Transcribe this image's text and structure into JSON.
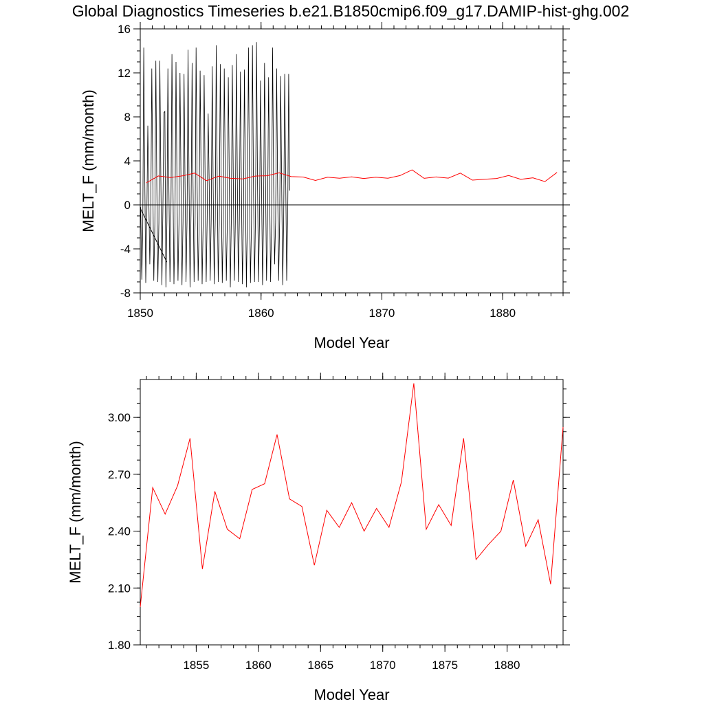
{
  "title": "Global Diagnostics Timeseries b.e21.B1850cmip6.f09_g17.DAMIP-hist-ghg.002",
  "colors": {
    "monthly": "#000000",
    "annual": "#ff0000",
    "zero_line": "#000000"
  },
  "chart_data": [
    {
      "type": "line",
      "xlabel": "Model Year",
      "ylabel": "MELT_F (mm/month)",
      "xlim": [
        1850,
        1885
      ],
      "ylim": [
        -8,
        16
      ],
      "xticks": [
        "1850",
        "1860",
        "1870",
        "1880"
      ],
      "yticks": [
        "-8",
        "-4",
        "0",
        "4",
        "8",
        "12",
        "16"
      ],
      "series": [
        {
          "kind": "monthly",
          "x_start": 1850.04,
          "x_step": 0.08333,
          "values": [
            -0.2,
            -6.8,
            -2.6,
            14.3,
            2.4,
            -7.1,
            -1.4,
            7.2,
            0.8,
            -5.4,
            -1.0,
            12.4,
            1.9,
            -6.9,
            -1.8,
            13.1,
            1.6,
            -7.0,
            -1.6,
            13.1,
            2.2,
            -7.3,
            -0.6,
            8.4,
            8.5,
            -7.5,
            -1.5,
            12.4,
            1.2,
            -7.0,
            -1.0,
            13.7,
            1.7,
            -7.2,
            -1.5,
            13.0,
            1.7,
            -6.9,
            -1.7,
            12.0,
            1.8,
            -7.3,
            -1.5,
            11.9,
            2.1,
            -7.0,
            -1.3,
            14.1,
            1.9,
            -7.5,
            -0.5,
            12.9,
            1.8,
            -7.0,
            -1.7,
            14.3,
            2.1,
            -6.9,
            -1.8,
            12.2,
            1.9,
            -7.2,
            -1.6,
            11.8,
            2.0,
            -7.0,
            -1.4,
            8.3,
            1.8,
            -6.9,
            -1.3,
            12.6,
            1.5,
            -7.2,
            -1.3,
            14.5,
            1.8,
            -7.0,
            -1.6,
            12.8,
            1.9,
            -7.1,
            -1.4,
            12.4,
            2.1,
            -6.9,
            -1.7,
            11.6,
            1.6,
            -7.5,
            -1.2,
            12.7,
            1.9,
            -6.9,
            -1.6,
            13.7,
            1.8,
            -7.0,
            -1.3,
            12.1,
            2.0,
            -7.2,
            -1.5,
            12.3,
            1.7,
            -7.5,
            -0.8,
            14.3,
            2.1,
            -7.1,
            -1.6,
            14.5,
            1.8,
            -7.0,
            -1.2,
            14.8,
            2.0,
            -7.0,
            -1.5,
            11.3,
            1.9,
            -7.3,
            -1.6,
            12.9,
            1.9,
            -6.9,
            -1.3,
            11.6,
            2.1,
            -7.0,
            -1.4,
            14.3,
            1.8,
            -5.4,
            -1.6,
            12.4,
            2.0,
            -6.9,
            -1.5,
            11.7,
            1.9,
            -7.3,
            -1.6,
            11.9,
            2.2,
            -6.9,
            -1.3,
            11.9,
            1.3
          ]
        },
        {
          "kind": "annual_mean",
          "x_start": 1850.5,
          "x_step": 1,
          "values": [
            2.0,
            2.63,
            2.49,
            2.64,
            2.89,
            2.2,
            2.61,
            2.41,
            2.36,
            2.62,
            2.65,
            2.91,
            2.57,
            2.53,
            2.22,
            2.51,
            2.42,
            2.55,
            2.4,
            2.52,
            2.42,
            2.66,
            3.18,
            2.41,
            2.54,
            2.43,
            2.89,
            2.25,
            2.33,
            2.4,
            2.67,
            2.32,
            2.46,
            2.12,
            2.95
          ]
        },
        {
          "kind": "trend_segment",
          "x": [
            1850.0,
            1852.2
          ],
          "values": [
            -0.3,
            -5.2
          ]
        },
        {
          "kind": "flat_segment",
          "x": [
            1850.0,
            1852.2
          ],
          "values": [
            0.0,
            0.0
          ]
        }
      ]
    },
    {
      "type": "line",
      "xlabel": "Model Year",
      "ylabel": "MELT_F (mm/month)",
      "xlim": [
        1850.5,
        1884.5
      ],
      "ylim": [
        1.8,
        3.2
      ],
      "xticks": [
        "1855",
        "1860",
        "1865",
        "1870",
        "1875",
        "1880"
      ],
      "yticks": [
        "1.80",
        "2.10",
        "2.40",
        "2.70",
        "3.00"
      ],
      "series": [
        {
          "kind": "annual_mean",
          "x_start": 1850.5,
          "x_step": 1,
          "values": [
            2.0,
            2.63,
            2.49,
            2.64,
            2.89,
            2.2,
            2.61,
            2.41,
            2.36,
            2.62,
            2.65,
            2.91,
            2.57,
            2.53,
            2.22,
            2.51,
            2.42,
            2.55,
            2.4,
            2.52,
            2.42,
            2.66,
            3.18,
            2.41,
            2.54,
            2.43,
            2.89,
            2.25,
            2.33,
            2.4,
            2.67,
            2.32,
            2.46,
            2.12,
            2.95
          ]
        }
      ]
    }
  ]
}
